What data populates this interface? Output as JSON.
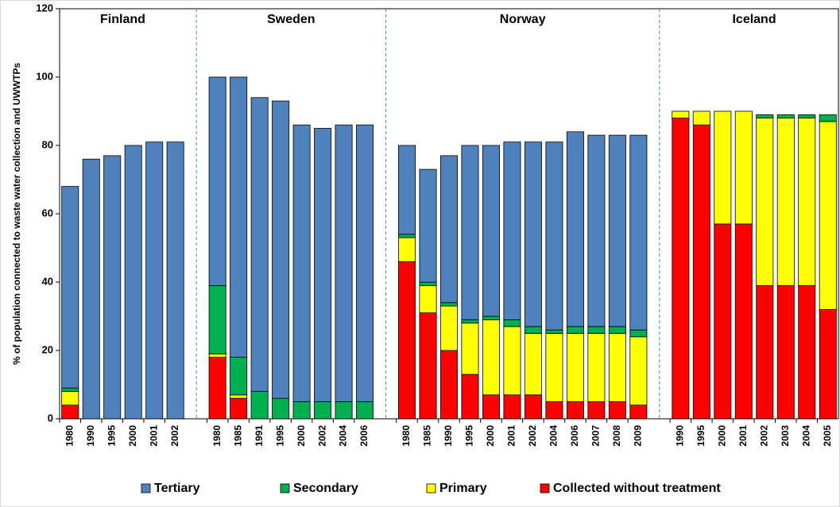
{
  "chart_data": {
    "type": "stacked_bar",
    "y_label": "% of population connected to waste water collection and UWWTPs",
    "groups": [
      "Finland",
      "Sweden",
      "Norway",
      "Iceland"
    ],
    "categories": [
      "1980",
      "1990",
      "1995",
      "2000",
      "2001",
      "2002",
      null,
      "1980",
      "1985",
      "1991",
      "1995",
      "2000",
      "2002",
      "2004",
      "2006",
      null,
      "1980",
      "1985",
      "1990",
      "1995",
      "2000",
      "2001",
      "2002",
      "2004",
      "2006",
      "2007",
      "2008",
      "2009",
      null,
      "1990",
      "1995",
      "2000",
      "2001",
      "2002",
      "2003",
      "2004",
      "2005"
    ],
    "series": [
      {
        "name": "Tertiary",
        "color": "#4f81bd",
        "values": [
          59,
          76,
          77,
          80,
          81,
          81,
          null,
          61,
          82,
          86,
          87,
          81,
          80,
          81,
          81,
          null,
          26,
          33,
          43,
          51,
          50,
          52,
          54,
          55,
          57,
          56,
          56,
          57,
          null,
          0,
          0,
          0,
          0,
          0,
          0,
          0,
          0
        ]
      },
      {
        "name": "Secondary",
        "color": "#00b050",
        "values": [
          1,
          0,
          0,
          0,
          0,
          0,
          null,
          20,
          11,
          8,
          6,
          5,
          5,
          5,
          5,
          null,
          1,
          1,
          1,
          1,
          1,
          2,
          2,
          1,
          2,
          2,
          2,
          2,
          null,
          0,
          0,
          0,
          0,
          1,
          1,
          1,
          2
        ]
      },
      {
        "name": "Primary",
        "color": "#ffff00",
        "values": [
          4,
          0,
          0,
          0,
          0,
          0,
          null,
          1,
          1,
          0,
          0,
          0,
          0,
          0,
          0,
          null,
          7,
          8,
          13,
          15,
          22,
          20,
          18,
          20,
          20,
          20,
          20,
          20,
          null,
          2,
          4,
          33,
          33,
          49,
          49,
          49,
          55
        ]
      },
      {
        "name": "Collected without treatment",
        "color": "#ff0000",
        "values": [
          4,
          0,
          0,
          0,
          0,
          0,
          null,
          18,
          6,
          0,
          0,
          0,
          0,
          0,
          0,
          null,
          46,
          31,
          20,
          13,
          7,
          7,
          7,
          5,
          5,
          5,
          5,
          4,
          null,
          88,
          86,
          57,
          57,
          39,
          39,
          39,
          32
        ]
      }
    ],
    "ylim": [
      0,
      120
    ],
    "yticks": [
      0,
      20,
      40,
      60,
      80,
      100,
      120
    ],
    "grid": false,
    "legend": "bottom"
  }
}
